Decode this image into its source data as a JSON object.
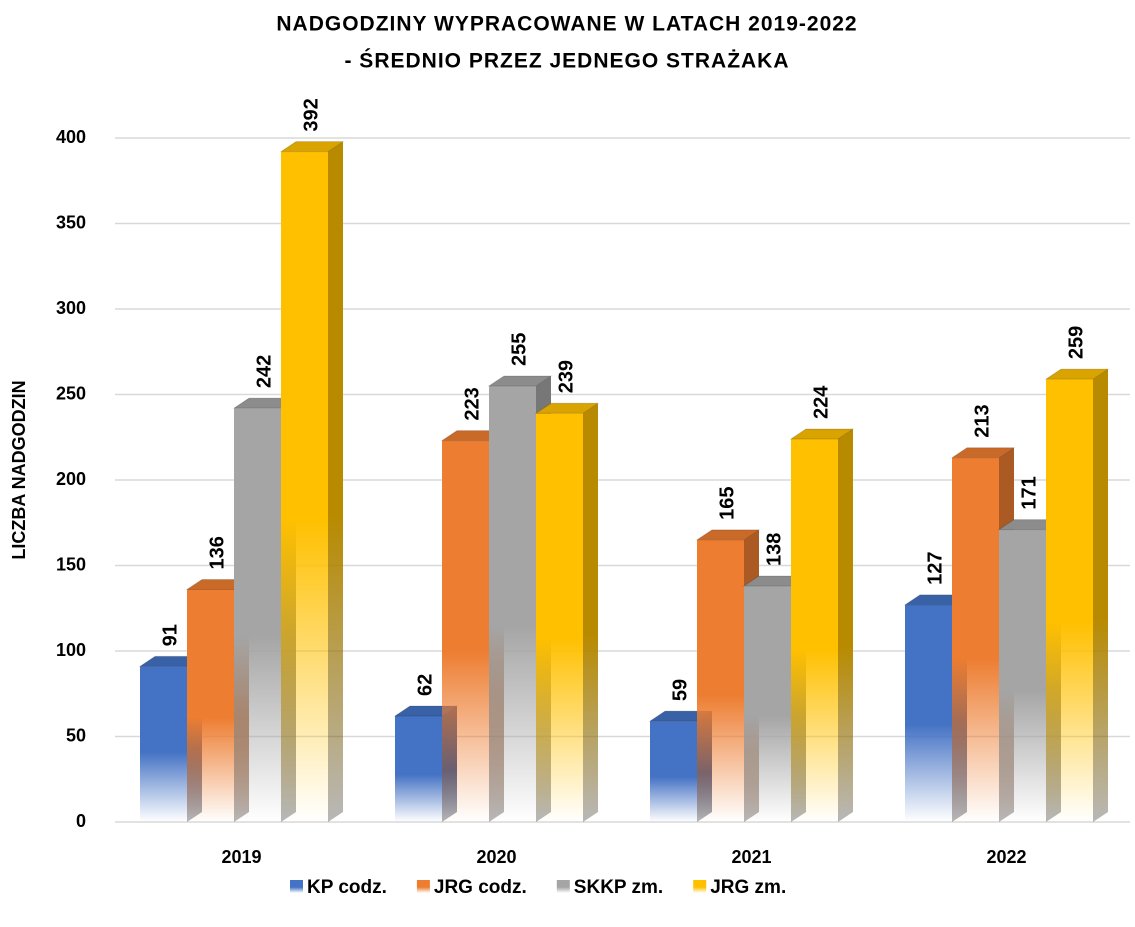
{
  "chart_data": {
    "type": "bar3d",
    "title": [
      "NADGODZINY WYPRACOWANE W LATACH 2019-2022",
      "- ŚREDNIO PRZEZ JEDNEGO STRAŻAKA"
    ],
    "y_label": "LICZBA NADGODZIN",
    "categories": [
      "2019",
      "2020",
      "2021",
      "2022"
    ],
    "series": [
      {
        "name": "KP codz.",
        "color": "#4472c4",
        "values": [
          91,
          62,
          59,
          127
        ]
      },
      {
        "name": "JRG codz.",
        "color": "#ed7d31",
        "values": [
          136,
          223,
          165,
          213
        ]
      },
      {
        "name": "SKKP zm.",
        "color": "#a5a5a5",
        "values": [
          242,
          255,
          138,
          171
        ]
      },
      {
        "name": "JRG zm.",
        "color": "#ffc000",
        "values": [
          392,
          239,
          224,
          259
        ]
      }
    ],
    "ylim": [
      0,
      400
    ],
    "yticks": [
      0,
      50,
      100,
      150,
      200,
      250,
      300,
      350,
      400
    ],
    "grid": true,
    "legend": "bottom"
  }
}
